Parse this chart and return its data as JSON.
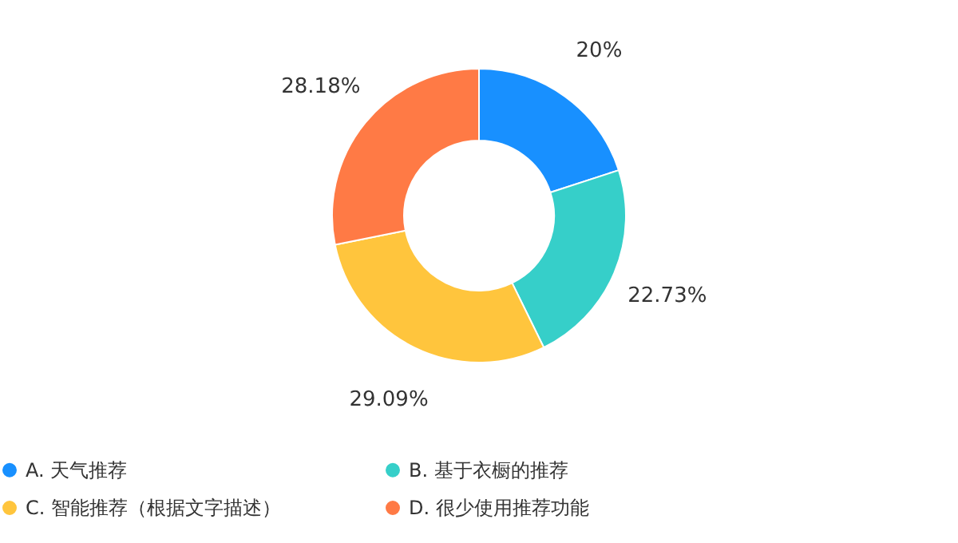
{
  "chart_data": {
    "type": "donut",
    "categories": [
      "A. 天气推荐",
      "B. 基于衣橱的推荐",
      "C. 智能推荐（根据文字描述）",
      "D. 很少使用推荐功能"
    ],
    "values": [
      20,
      22.73,
      29.09,
      28.18
    ],
    "value_labels": [
      "20%",
      "22.73%",
      "29.09%",
      "28.18%"
    ],
    "colors": [
      "#1890ff",
      "#36cfc9",
      "#ffc53d",
      "#ff7a45"
    ],
    "legend": "bottom"
  }
}
